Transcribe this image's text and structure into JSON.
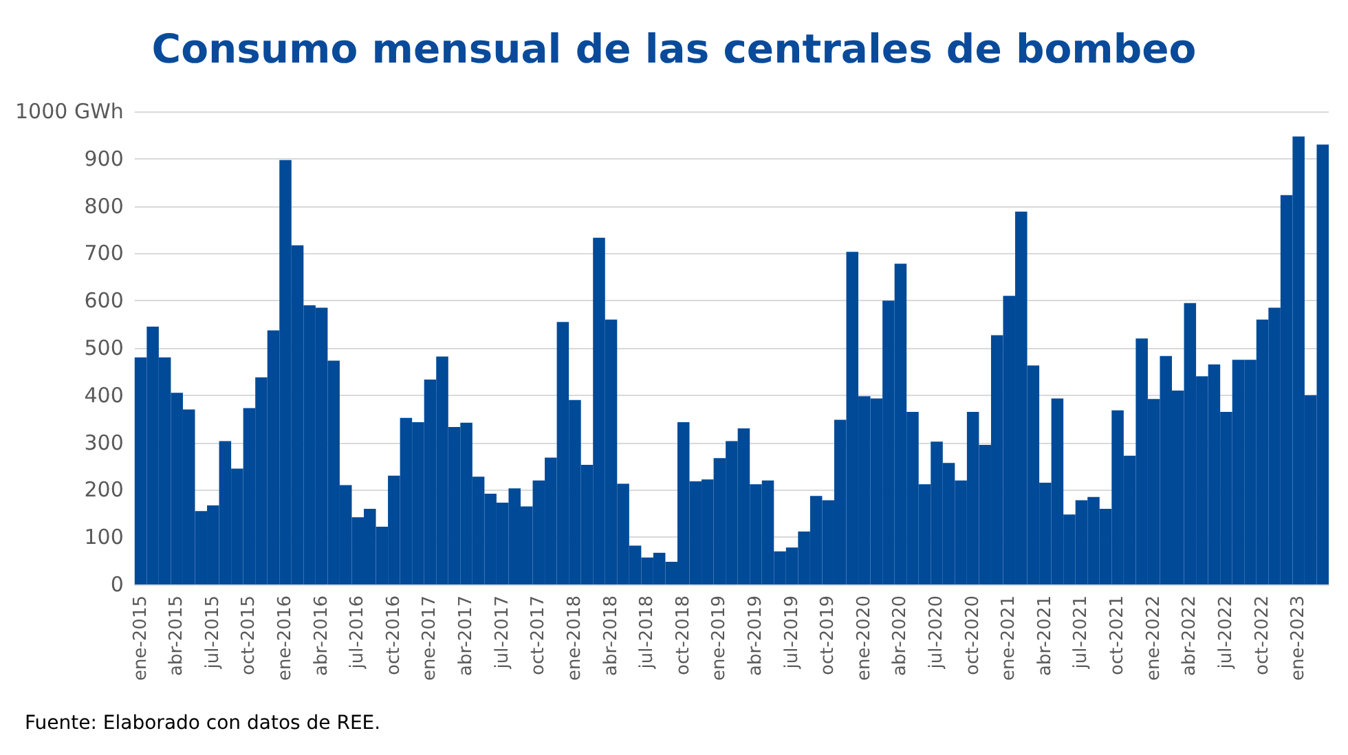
{
  "chart_data": {
    "type": "bar",
    "title": "Consumo mensual de las centrales de bombeo",
    "categories": [
      "ene-2015",
      null,
      null,
      "abr-2015",
      null,
      null,
      "jul-2015",
      null,
      null,
      "oct-2015",
      null,
      null,
      "ene-2016",
      null,
      null,
      "abr-2016",
      null,
      null,
      "jul-2016",
      null,
      null,
      "oct-2016",
      null,
      null,
      "ene-2017",
      null,
      null,
      "abr-2017",
      null,
      null,
      "jul-2017",
      null,
      null,
      "oct-2017",
      null,
      null,
      "ene-2018",
      null,
      null,
      "abr-2018",
      null,
      null,
      "jul-2018",
      null,
      null,
      "oct-2018",
      null,
      null,
      "ene-2019",
      null,
      null,
      "abr-2019",
      null,
      null,
      "jul-2019",
      null,
      null,
      "oct-2019",
      null,
      null,
      "ene-2020",
      null,
      null,
      "abr-2020",
      null,
      null,
      "jul-2020",
      null,
      null,
      "oct-2020",
      null,
      null,
      "ene-2021",
      null,
      null,
      "abr-2021",
      null,
      null,
      "jul-2021",
      null,
      null,
      "oct-2021",
      null,
      null,
      "ene-2022",
      null,
      null,
      "abr-2022",
      null,
      null,
      "jul-2022",
      null,
      null,
      "oct-2022",
      null,
      null,
      "ene-2023",
      null,
      null
    ],
    "values": [
      480,
      545,
      480,
      405,
      370,
      155,
      167,
      303,
      245,
      373,
      438,
      537,
      897,
      717,
      590,
      585,
      473,
      210,
      142,
      160,
      122,
      230,
      352,
      343,
      433,
      482,
      333,
      342,
      228,
      192,
      173,
      203,
      165,
      220,
      268,
      555,
      390,
      253,
      733,
      560,
      213,
      82,
      57,
      67,
      48,
      343,
      218,
      222,
      267,
      303,
      330,
      212,
      220,
      70,
      78,
      112,
      187,
      178,
      348,
      703,
      398,
      393,
      600,
      678,
      365,
      212,
      302,
      257,
      220,
      365,
      295,
      527,
      610,
      788,
      463,
      215,
      393,
      148,
      178,
      185,
      160,
      368,
      272,
      520,
      392,
      483,
      410,
      595,
      440,
      465,
      365,
      475,
      475,
      560,
      585,
      823,
      947,
      400,
      930
    ],
    "color": "#004a98",
    "ylim": [
      0,
      1000
    ],
    "yticks": [
      0,
      100,
      200,
      300,
      400,
      500,
      600,
      700,
      800,
      900,
      {
        "value": 1000,
        "label": "1000 GWh"
      }
    ],
    "grid": "y",
    "annotations": [
      "Fuente: Elaborado con datos de REE."
    ]
  }
}
